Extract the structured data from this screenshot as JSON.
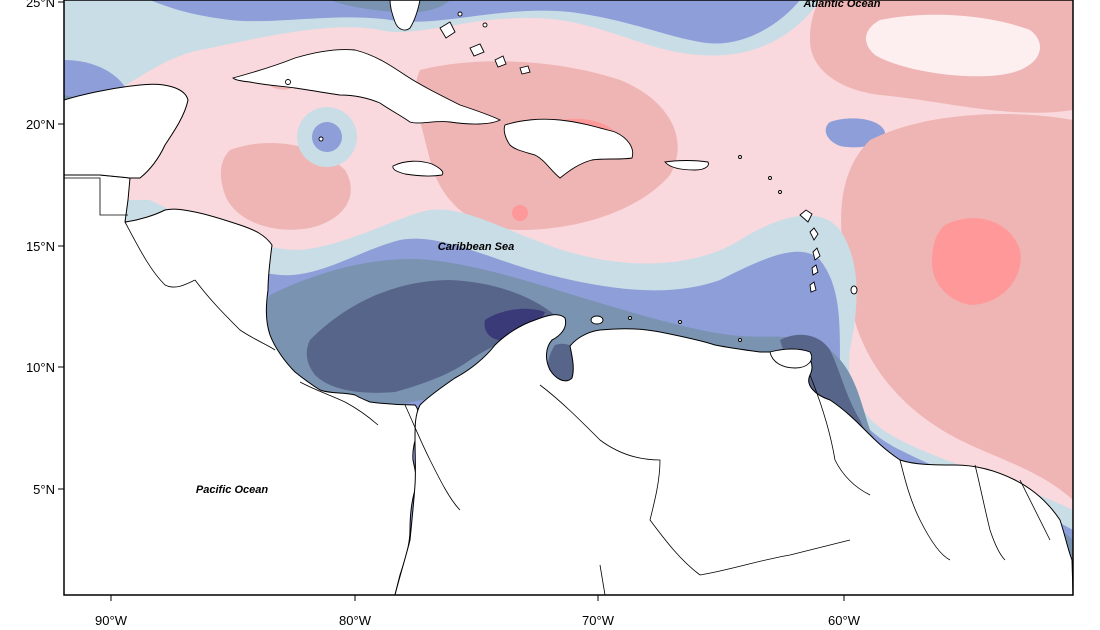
{
  "map": {
    "ocean_labels": {
      "atlantic": "Atlantic Ocean",
      "caribbean": "Caribbean Sea",
      "pacific": "Pacific Ocean"
    },
    "lat_ticks": [
      "25°N",
      "20°N",
      "15°N",
      "10°N",
      "5°N"
    ],
    "lon_ticks": [
      "90°W",
      "80°W",
      "70°W",
      "60°W"
    ],
    "colors": {
      "anomaly_pos_strong": "#ff9898",
      "anomaly_pos_mid": "#efb5b5",
      "anomaly_pos_weak": "#f9d9dd",
      "near_zero": "#fdeef0",
      "anomaly_neg_weak": "#c9dde6",
      "anomaly_neg_mid": "#8e9ed9",
      "anomaly_neg_strong": "#7a93b0",
      "anomaly_neg_stronger": "#58658a",
      "anomaly_neg_max": "#3a3a78",
      "land": "#ffffff"
    }
  }
}
